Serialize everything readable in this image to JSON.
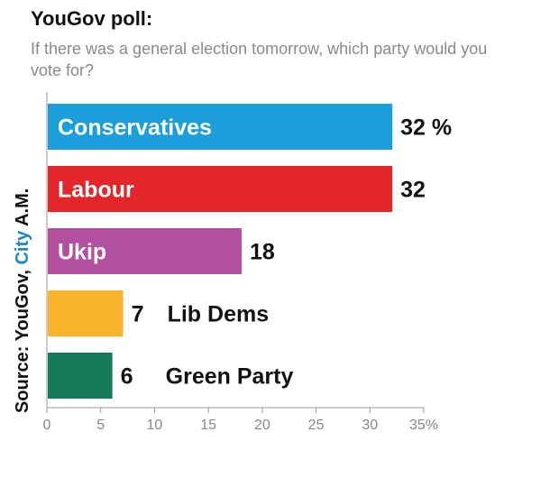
{
  "header": {
    "title": "YouGov poll:",
    "subtitle": "If there was a general election tomorrow, which party would you vote for?"
  },
  "source": {
    "prefix": "Source: YouGov, ",
    "brand": "City",
    "suffix": " A.M."
  },
  "colors": {
    "Conservatives": "#1b9ed9",
    "Labour": "#e3262b",
    "Ukip": "#b24f9f",
    "Lib Dems": "#fbb52d",
    "Green Party": "#157a56",
    "brand": "#1b87c4"
  },
  "chart_data": {
    "type": "bar",
    "orientation": "horizontal",
    "categories": [
      "Conservatives",
      "Labour",
      "Ukip",
      "Lib Dems",
      "Green Party"
    ],
    "values": [
      32,
      32,
      18,
      7,
      6
    ],
    "value_labels": [
      "32 %",
      "32",
      "18",
      "7",
      "6"
    ],
    "label_inside": [
      true,
      true,
      true,
      false,
      false
    ],
    "xlim": [
      0,
      35
    ],
    "xticks": [
      0,
      5,
      10,
      15,
      20,
      25,
      30,
      35
    ],
    "xtick_labels": [
      "0",
      "5",
      "10",
      "15",
      "20",
      "25",
      "30",
      "35%"
    ],
    "grid": false,
    "legend": "none"
  }
}
